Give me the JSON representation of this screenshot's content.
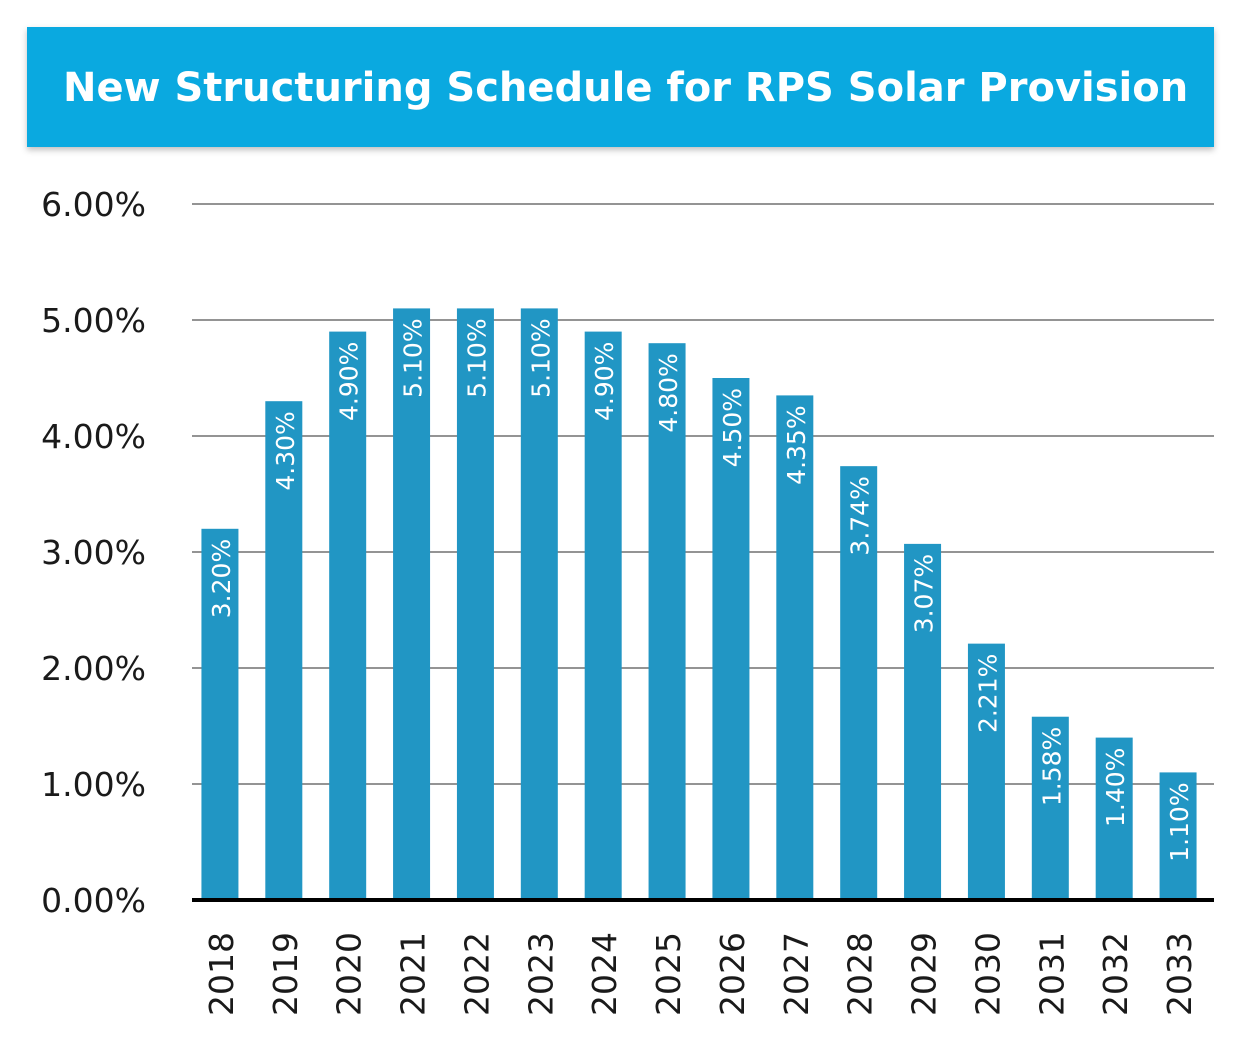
{
  "title": "New Structuring Schedule for RPS Solar Provision",
  "colors": {
    "banner": "#0aa9e0",
    "bar": "#2196c4",
    "grid": "#555555",
    "axis": "#000000",
    "label": "#ffffff",
    "text": "#1a1a1a"
  },
  "chart_data": {
    "type": "bar",
    "title": "New Structuring Schedule for RPS Solar Provision",
    "xlabel": "",
    "ylabel": "",
    "categories": [
      "2018",
      "2019",
      "2020",
      "2021",
      "2022",
      "2023",
      "2024",
      "2025",
      "2026",
      "2027",
      "2028",
      "2029",
      "2030",
      "2031",
      "2032",
      "2033"
    ],
    "values": [
      3.2,
      4.3,
      4.9,
      5.1,
      5.1,
      5.1,
      4.9,
      4.8,
      4.5,
      4.35,
      3.74,
      3.07,
      2.21,
      1.58,
      1.4,
      1.1
    ],
    "value_labels": [
      "3.20%",
      "4.30%",
      "4.90%",
      "5.10%",
      "5.10%",
      "5.10%",
      "4.90%",
      "4.80%",
      "4.50%",
      "4.35%",
      "3.74%",
      "3.07%",
      "2.21%",
      "1.58%",
      "1.40%",
      "1.10%"
    ],
    "yticks": [
      0,
      1,
      2,
      3,
      4,
      5,
      6
    ],
    "ytick_labels": [
      "0.00%",
      "1.00%",
      "2.00%",
      "3.00%",
      "4.00%",
      "5.00%",
      "6.00%"
    ],
    "ylim": [
      0,
      6
    ],
    "grid": true,
    "legend": "none"
  }
}
